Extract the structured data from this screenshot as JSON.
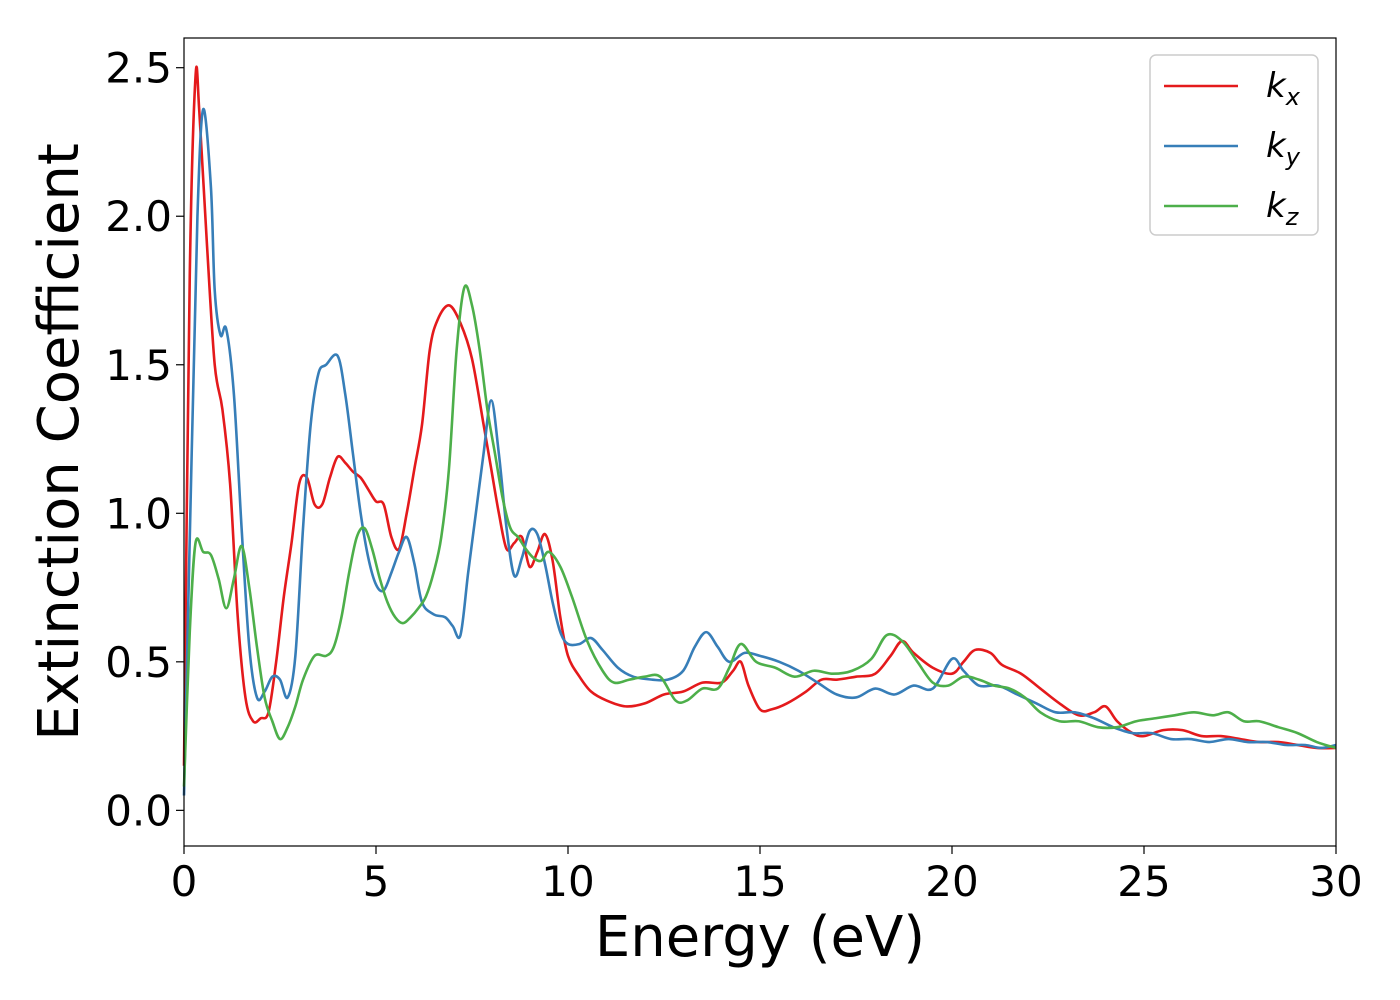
{
  "chart_data": {
    "type": "line",
    "xlabel": "Energy (eV)",
    "ylabel": "Extinction Coefficient",
    "xlim": [
      0,
      30
    ],
    "ylim": [
      -0.12,
      2.6
    ],
    "xticks": [
      0,
      5,
      10,
      15,
      20,
      25,
      30
    ],
    "xtick_labels": [
      "0",
      "5",
      "10",
      "15",
      "20",
      "25",
      "30"
    ],
    "yticks": [
      0.0,
      0.5,
      1.0,
      1.5,
      2.0,
      2.5
    ],
    "ytick_labels": [
      "0.0",
      "0.5",
      "1.0",
      "1.5",
      "2.0",
      "2.5"
    ],
    "grid": false,
    "legend_position": "top-right",
    "series": [
      {
        "name": "k",
        "subscript": "x",
        "color": "#e41a1c",
        "points": [
          [
            0,
            0.15
          ],
          [
            0.15,
            1.8
          ],
          [
            0.3,
            2.47
          ],
          [
            0.4,
            2.35
          ],
          [
            0.6,
            1.9
          ],
          [
            0.8,
            1.5
          ],
          [
            1.0,
            1.35
          ],
          [
            1.2,
            1.1
          ],
          [
            1.4,
            0.65
          ],
          [
            1.6,
            0.38
          ],
          [
            1.8,
            0.3
          ],
          [
            2.0,
            0.31
          ],
          [
            2.2,
            0.33
          ],
          [
            2.4,
            0.5
          ],
          [
            2.6,
            0.72
          ],
          [
            2.8,
            0.9
          ],
          [
            3.0,
            1.1
          ],
          [
            3.2,
            1.12
          ],
          [
            3.4,
            1.03
          ],
          [
            3.6,
            1.03
          ],
          [
            3.8,
            1.12
          ],
          [
            4.0,
            1.19
          ],
          [
            4.2,
            1.17
          ],
          [
            4.4,
            1.14
          ],
          [
            4.6,
            1.12
          ],
          [
            4.8,
            1.08
          ],
          [
            5.0,
            1.04
          ],
          [
            5.2,
            1.03
          ],
          [
            5.4,
            0.92
          ],
          [
            5.6,
            0.88
          ],
          [
            5.8,
            1.0
          ],
          [
            6.0,
            1.15
          ],
          [
            6.2,
            1.3
          ],
          [
            6.4,
            1.55
          ],
          [
            6.6,
            1.65
          ],
          [
            6.9,
            1.7
          ],
          [
            7.2,
            1.64
          ],
          [
            7.5,
            1.52
          ],
          [
            7.8,
            1.3
          ],
          [
            8.0,
            1.15
          ],
          [
            8.2,
            1.0
          ],
          [
            8.4,
            0.88
          ],
          [
            8.6,
            0.9
          ],
          [
            8.8,
            0.92
          ],
          [
            9.0,
            0.82
          ],
          [
            9.2,
            0.87
          ],
          [
            9.4,
            0.93
          ],
          [
            9.6,
            0.84
          ],
          [
            9.8,
            0.65
          ],
          [
            10.0,
            0.52
          ],
          [
            10.3,
            0.45
          ],
          [
            10.6,
            0.4
          ],
          [
            11.0,
            0.37
          ],
          [
            11.5,
            0.35
          ],
          [
            12.0,
            0.36
          ],
          [
            12.5,
            0.39
          ],
          [
            13.0,
            0.4
          ],
          [
            13.5,
            0.43
          ],
          [
            14.0,
            0.43
          ],
          [
            14.3,
            0.47
          ],
          [
            14.5,
            0.5
          ],
          [
            14.7,
            0.42
          ],
          [
            15.0,
            0.34
          ],
          [
            15.3,
            0.34
          ],
          [
            15.7,
            0.36
          ],
          [
            16.2,
            0.4
          ],
          [
            16.6,
            0.44
          ],
          [
            17.0,
            0.44
          ],
          [
            17.5,
            0.45
          ],
          [
            18.0,
            0.46
          ],
          [
            18.4,
            0.52
          ],
          [
            18.7,
            0.57
          ],
          [
            19.0,
            0.53
          ],
          [
            19.5,
            0.48
          ],
          [
            20.0,
            0.46
          ],
          [
            20.3,
            0.5
          ],
          [
            20.6,
            0.54
          ],
          [
            21.0,
            0.53
          ],
          [
            21.3,
            0.49
          ],
          [
            21.8,
            0.46
          ],
          [
            22.3,
            0.41
          ],
          [
            22.8,
            0.36
          ],
          [
            23.3,
            0.32
          ],
          [
            23.7,
            0.33
          ],
          [
            24.0,
            0.35
          ],
          [
            24.3,
            0.3
          ],
          [
            24.7,
            0.26
          ],
          [
            25.0,
            0.25
          ],
          [
            25.5,
            0.27
          ],
          [
            26.0,
            0.27
          ],
          [
            26.5,
            0.25
          ],
          [
            27.0,
            0.25
          ],
          [
            27.5,
            0.24
          ],
          [
            28.0,
            0.23
          ],
          [
            28.5,
            0.23
          ],
          [
            29.0,
            0.22
          ],
          [
            29.5,
            0.21
          ],
          [
            30.0,
            0.21
          ]
        ]
      },
      {
        "name": "k",
        "subscript": "y",
        "color": "#377eb8",
        "points": [
          [
            0,
            0.05
          ],
          [
            0.2,
            1.2
          ],
          [
            0.35,
            2.0
          ],
          [
            0.5,
            2.36
          ],
          [
            0.7,
            2.1
          ],
          [
            0.8,
            1.75
          ],
          [
            0.95,
            1.6
          ],
          [
            1.1,
            1.62
          ],
          [
            1.3,
            1.4
          ],
          [
            1.5,
            0.95
          ],
          [
            1.7,
            0.55
          ],
          [
            1.9,
            0.38
          ],
          [
            2.1,
            0.4
          ],
          [
            2.3,
            0.45
          ],
          [
            2.5,
            0.44
          ],
          [
            2.7,
            0.38
          ],
          [
            2.9,
            0.52
          ],
          [
            3.1,
            0.95
          ],
          [
            3.3,
            1.3
          ],
          [
            3.5,
            1.47
          ],
          [
            3.7,
            1.5
          ],
          [
            4.0,
            1.53
          ],
          [
            4.2,
            1.4
          ],
          [
            4.4,
            1.2
          ],
          [
            4.6,
            1.0
          ],
          [
            4.8,
            0.85
          ],
          [
            5.0,
            0.76
          ],
          [
            5.2,
            0.74
          ],
          [
            5.4,
            0.8
          ],
          [
            5.6,
            0.87
          ],
          [
            5.8,
            0.92
          ],
          [
            6.0,
            0.83
          ],
          [
            6.2,
            0.7
          ],
          [
            6.5,
            0.66
          ],
          [
            6.8,
            0.65
          ],
          [
            7.0,
            0.62
          ],
          [
            7.2,
            0.59
          ],
          [
            7.4,
            0.8
          ],
          [
            7.6,
            1.0
          ],
          [
            7.8,
            1.2
          ],
          [
            8.0,
            1.38
          ],
          [
            8.2,
            1.2
          ],
          [
            8.4,
            0.95
          ],
          [
            8.6,
            0.79
          ],
          [
            8.8,
            0.85
          ],
          [
            9.0,
            0.94
          ],
          [
            9.2,
            0.93
          ],
          [
            9.4,
            0.83
          ],
          [
            9.6,
            0.7
          ],
          [
            9.8,
            0.6
          ],
          [
            10.0,
            0.56
          ],
          [
            10.3,
            0.56
          ],
          [
            10.6,
            0.58
          ],
          [
            10.9,
            0.54
          ],
          [
            11.3,
            0.48
          ],
          [
            11.7,
            0.45
          ],
          [
            12.2,
            0.44
          ],
          [
            12.6,
            0.44
          ],
          [
            13.0,
            0.47
          ],
          [
            13.3,
            0.55
          ],
          [
            13.6,
            0.6
          ],
          [
            13.9,
            0.55
          ],
          [
            14.2,
            0.5
          ],
          [
            14.6,
            0.53
          ],
          [
            15.0,
            0.52
          ],
          [
            15.5,
            0.5
          ],
          [
            16.0,
            0.47
          ],
          [
            16.5,
            0.43
          ],
          [
            17.0,
            0.39
          ],
          [
            17.5,
            0.38
          ],
          [
            18.0,
            0.41
          ],
          [
            18.5,
            0.39
          ],
          [
            19.0,
            0.42
          ],
          [
            19.5,
            0.41
          ],
          [
            20.0,
            0.51
          ],
          [
            20.3,
            0.47
          ],
          [
            20.7,
            0.42
          ],
          [
            21.2,
            0.42
          ],
          [
            21.7,
            0.39
          ],
          [
            22.2,
            0.36
          ],
          [
            22.7,
            0.33
          ],
          [
            23.2,
            0.33
          ],
          [
            23.7,
            0.31
          ],
          [
            24.2,
            0.28
          ],
          [
            24.7,
            0.26
          ],
          [
            25.2,
            0.26
          ],
          [
            25.7,
            0.24
          ],
          [
            26.2,
            0.24
          ],
          [
            26.7,
            0.23
          ],
          [
            27.2,
            0.24
          ],
          [
            27.7,
            0.23
          ],
          [
            28.2,
            0.23
          ],
          [
            28.7,
            0.22
          ],
          [
            29.2,
            0.22
          ],
          [
            29.6,
            0.21
          ],
          [
            30.0,
            0.22
          ]
        ]
      },
      {
        "name": "k",
        "subscript": "z",
        "color": "#4daf4a",
        "points": [
          [
            0,
            0.08
          ],
          [
            0.15,
            0.6
          ],
          [
            0.3,
            0.9
          ],
          [
            0.5,
            0.87
          ],
          [
            0.7,
            0.86
          ],
          [
            0.9,
            0.78
          ],
          [
            1.1,
            0.68
          ],
          [
            1.3,
            0.78
          ],
          [
            1.5,
            0.89
          ],
          [
            1.7,
            0.75
          ],
          [
            1.9,
            0.55
          ],
          [
            2.1,
            0.38
          ],
          [
            2.3,
            0.3
          ],
          [
            2.5,
            0.24
          ],
          [
            2.7,
            0.28
          ],
          [
            2.9,
            0.35
          ],
          [
            3.1,
            0.44
          ],
          [
            3.4,
            0.52
          ],
          [
            3.7,
            0.52
          ],
          [
            3.9,
            0.55
          ],
          [
            4.1,
            0.65
          ],
          [
            4.3,
            0.8
          ],
          [
            4.5,
            0.92
          ],
          [
            4.7,
            0.95
          ],
          [
            4.9,
            0.88
          ],
          [
            5.1,
            0.78
          ],
          [
            5.3,
            0.7
          ],
          [
            5.5,
            0.65
          ],
          [
            5.7,
            0.63
          ],
          [
            5.9,
            0.65
          ],
          [
            6.1,
            0.68
          ],
          [
            6.3,
            0.72
          ],
          [
            6.5,
            0.8
          ],
          [
            6.7,
            0.92
          ],
          [
            6.9,
            1.15
          ],
          [
            7.1,
            1.55
          ],
          [
            7.3,
            1.76
          ],
          [
            7.5,
            1.7
          ],
          [
            7.7,
            1.55
          ],
          [
            7.9,
            1.35
          ],
          [
            8.1,
            1.2
          ],
          [
            8.3,
            1.05
          ],
          [
            8.5,
            0.95
          ],
          [
            8.7,
            0.92
          ],
          [
            8.9,
            0.88
          ],
          [
            9.1,
            0.85
          ],
          [
            9.3,
            0.84
          ],
          [
            9.5,
            0.87
          ],
          [
            9.8,
            0.82
          ],
          [
            10.1,
            0.72
          ],
          [
            10.5,
            0.57
          ],
          [
            10.9,
            0.47
          ],
          [
            11.2,
            0.43
          ],
          [
            11.6,
            0.44
          ],
          [
            12.0,
            0.45
          ],
          [
            12.4,
            0.45
          ],
          [
            12.8,
            0.37
          ],
          [
            13.1,
            0.37
          ],
          [
            13.5,
            0.41
          ],
          [
            13.9,
            0.41
          ],
          [
            14.2,
            0.48
          ],
          [
            14.5,
            0.56
          ],
          [
            14.9,
            0.5
          ],
          [
            15.4,
            0.48
          ],
          [
            15.9,
            0.45
          ],
          [
            16.4,
            0.47
          ],
          [
            16.9,
            0.46
          ],
          [
            17.4,
            0.47
          ],
          [
            17.9,
            0.51
          ],
          [
            18.3,
            0.59
          ],
          [
            18.7,
            0.57
          ],
          [
            19.1,
            0.5
          ],
          [
            19.5,
            0.43
          ],
          [
            19.9,
            0.42
          ],
          [
            20.3,
            0.45
          ],
          [
            20.7,
            0.44
          ],
          [
            21.1,
            0.42
          ],
          [
            21.5,
            0.41
          ],
          [
            21.9,
            0.38
          ],
          [
            22.3,
            0.33
          ],
          [
            22.8,
            0.3
          ],
          [
            23.3,
            0.3
          ],
          [
            23.8,
            0.28
          ],
          [
            24.3,
            0.28
          ],
          [
            24.8,
            0.3
          ],
          [
            25.3,
            0.31
          ],
          [
            25.8,
            0.32
          ],
          [
            26.3,
            0.33
          ],
          [
            26.8,
            0.32
          ],
          [
            27.2,
            0.33
          ],
          [
            27.6,
            0.3
          ],
          [
            28.0,
            0.3
          ],
          [
            28.5,
            0.28
          ],
          [
            29.0,
            0.26
          ],
          [
            29.5,
            0.23
          ],
          [
            30.0,
            0.21
          ]
        ]
      }
    ]
  }
}
